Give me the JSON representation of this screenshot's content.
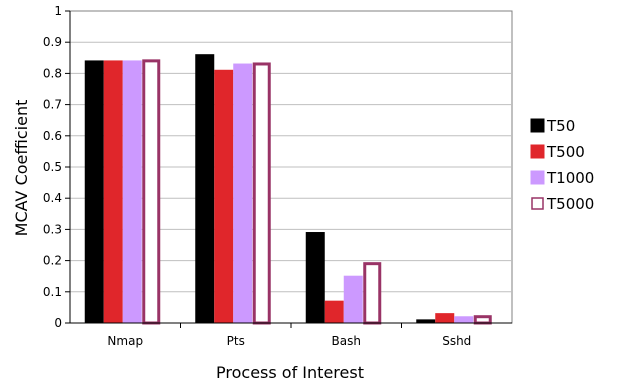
{
  "chart_data": {
    "type": "bar",
    "title": "",
    "xlabel": "Process of Interest",
    "ylabel": "MCAV Coefficient",
    "categories": [
      "Nmap",
      "Pts",
      "Bash",
      "Sshd"
    ],
    "ylim": [
      0,
      1
    ],
    "yticks": [
      "0",
      "0.1",
      "0.2",
      "0.3",
      "0.4",
      "0.5",
      "0.6",
      "0.7",
      "0.8",
      "0.9",
      "1"
    ],
    "grid": true,
    "legend_position": "right",
    "series": [
      {
        "name": "T50",
        "values": [
          0.84,
          0.86,
          0.29,
          0.01
        ],
        "fill": "#000000",
        "stroke": "#000000"
      },
      {
        "name": "T500",
        "values": [
          0.84,
          0.81,
          0.07,
          0.03
        ],
        "fill": "#e0262b",
        "stroke": "#e0262b"
      },
      {
        "name": "T1000",
        "values": [
          0.84,
          0.83,
          0.15,
          0.02
        ],
        "fill": "#cc99ff",
        "stroke": "#cc99ff"
      },
      {
        "name": "T5000",
        "values": [
          0.845,
          0.835,
          0.195,
          0.025
        ],
        "fill": "#ffffff",
        "stroke": "#993366"
      }
    ]
  }
}
